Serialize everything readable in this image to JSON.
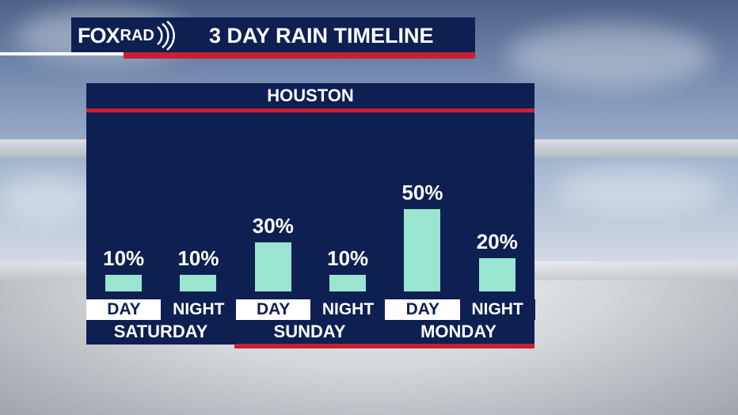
{
  "header": {
    "logo_fox": "FOX",
    "logo_rad": "RAD",
    "title": "3 DAY RAIN TIMELINE"
  },
  "panel": {
    "city": "HOUSTON"
  },
  "chart_data": {
    "type": "bar",
    "title": "3 DAY RAIN TIMELINE",
    "subtitle": "HOUSTON",
    "categories": [
      "SATURDAY DAY",
      "SATURDAY NIGHT",
      "SUNDAY DAY",
      "SUNDAY NIGHT",
      "MONDAY DAY",
      "MONDAY NIGHT"
    ],
    "periods": [
      "DAY",
      "NIGHT",
      "DAY",
      "NIGHT",
      "DAY",
      "NIGHT"
    ],
    "days": [
      "SATURDAY",
      "SUNDAY",
      "MONDAY"
    ],
    "values": [
      10,
      10,
      30,
      10,
      50,
      20
    ],
    "value_labels": [
      "10%",
      "10%",
      "30%",
      "10%",
      "50%",
      "20%"
    ],
    "ylim": [
      0,
      50
    ],
    "bar_color": "#99e5d0"
  },
  "colors": {
    "navy": "#0e1f52",
    "red": "#c81f32",
    "bar": "#99e5d0"
  }
}
